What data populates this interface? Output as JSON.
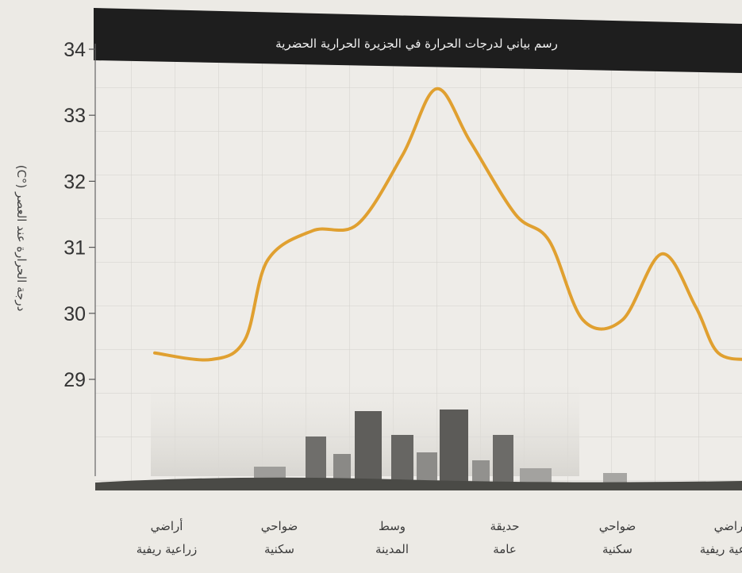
{
  "chart_data": {
    "type": "line",
    "title": "رسم بياني لدرجات الحرارة في الجزيرة الحرارية الحضرية",
    "ylabel": "درجة الحرارة عند العصر (°C)",
    "xlabel": "",
    "ylim": [
      29,
      34
    ],
    "yticks": [
      "29",
      "30",
      "31",
      "32",
      "33",
      "34"
    ],
    "categories": [
      [
        "أراضي",
        "زراعية ريفية"
      ],
      [
        "ضواحي",
        "سكنية"
      ],
      [
        "وسط",
        "المدينة"
      ],
      [
        "حديقة",
        "عامة"
      ],
      [
        "ضواحي",
        "سكنية"
      ],
      [
        "أراضي",
        "زراعية ريفية"
      ]
    ],
    "series": [
      {
        "x": [
          0,
          0.5,
          0.8,
          1.0,
          1.4,
          1.8,
          2.2,
          2.5,
          2.8,
          3.2,
          3.5,
          3.8,
          4.15,
          4.5,
          4.8,
          5.0,
          5.3
        ],
        "values": [
          29.4,
          29.3,
          29.6,
          30.8,
          31.25,
          31.35,
          32.4,
          33.4,
          32.6,
          31.5,
          31.1,
          29.9,
          29.9,
          30.9,
          30.1,
          29.4,
          29.3
        ]
      }
    ],
    "colors": {
      "line": "#e0a030",
      "title_bar": "#1e1e1e"
    },
    "grid": true
  }
}
